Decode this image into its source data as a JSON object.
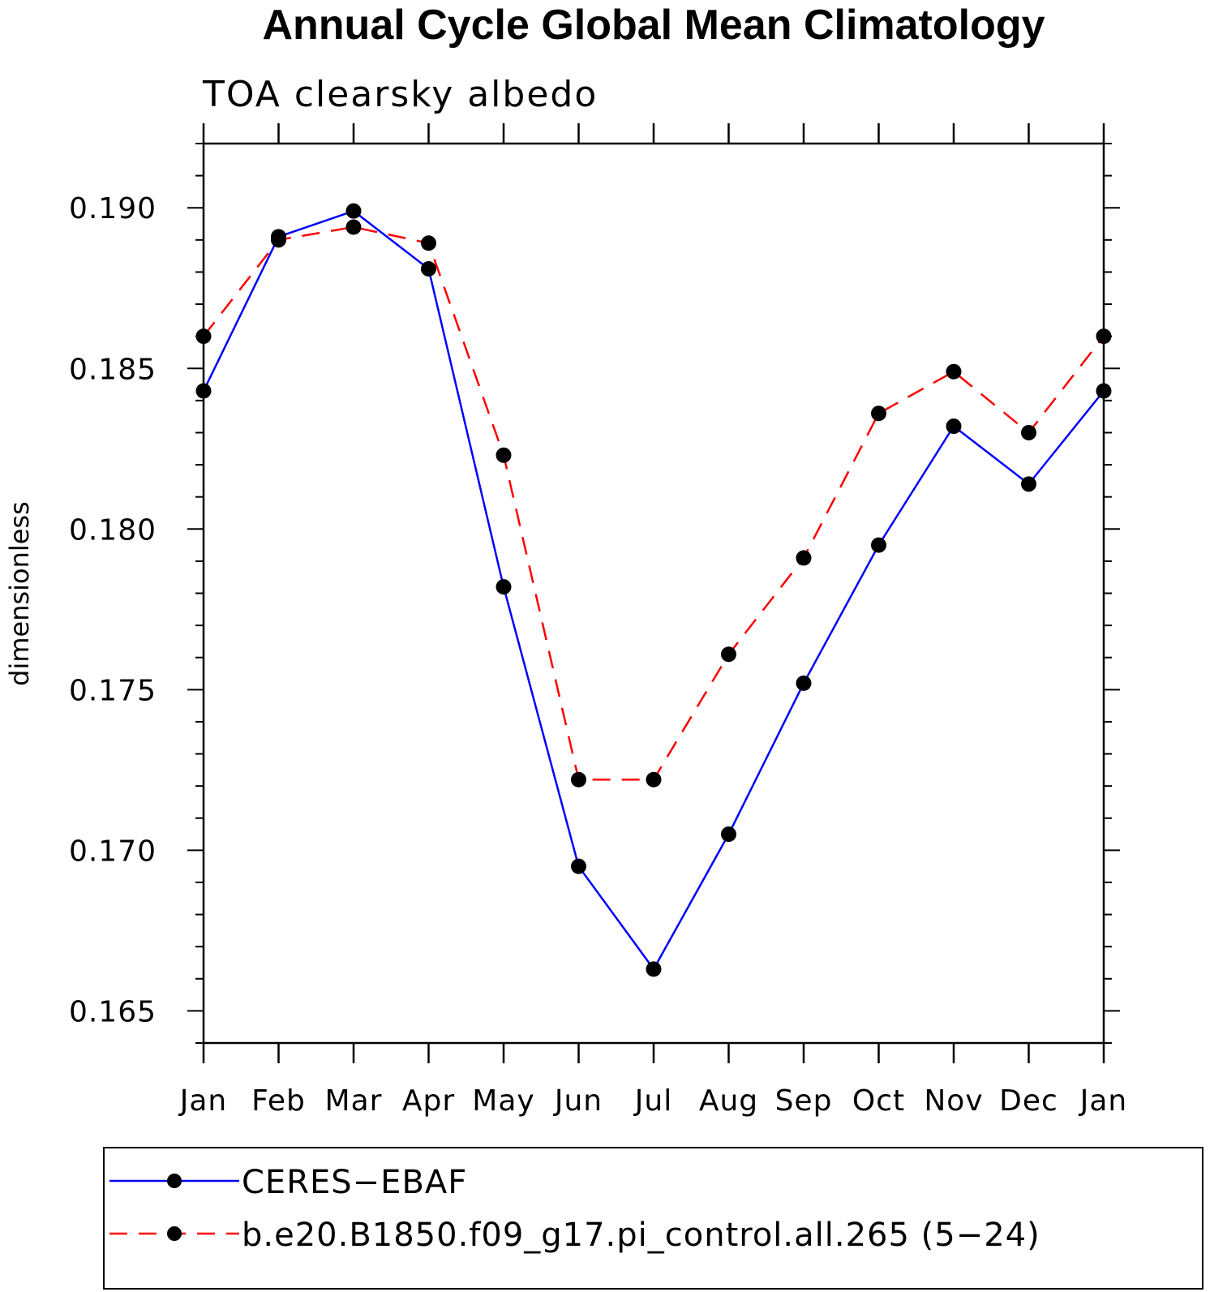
{
  "chart_data": {
    "type": "line",
    "title": "Annual Cycle Global Mean Climatology",
    "subtitle": "TOA clearsky albedo",
    "xlabel": "",
    "ylabel": "dimensionless",
    "categories": [
      "Jan",
      "Feb",
      "Mar",
      "Apr",
      "May",
      "Jun",
      "Jul",
      "Aug",
      "Sep",
      "Oct",
      "Nov",
      "Dec",
      "Jan"
    ],
    "ylim": [
      0.164,
      0.192
    ],
    "yticks": [
      "0.165",
      "0.170",
      "0.175",
      "0.180",
      "0.185",
      "0.190"
    ],
    "grid": false,
    "legend_position": "bottom",
    "series": [
      {
        "name": "CERES−EBAF",
        "color": "#0000ff",
        "dash": "solid",
        "marker": "filled-circle",
        "values": [
          0.1843,
          0.1891,
          0.1899,
          0.1881,
          0.1782,
          0.1695,
          0.1663,
          0.1705,
          0.1752,
          0.1795,
          0.1832,
          0.1814,
          0.1843
        ]
      },
      {
        "name": "b.e20.B1850.f09_g17.pi_control.all.265 (5−24)",
        "color": "#ff0000",
        "dash": "dashed",
        "marker": "filled-circle",
        "values": [
          0.186,
          0.189,
          0.1894,
          0.1889,
          0.1823,
          0.1722,
          0.1722,
          0.1761,
          0.1791,
          0.1836,
          0.1849,
          0.183,
          0.186
        ]
      }
    ]
  }
}
